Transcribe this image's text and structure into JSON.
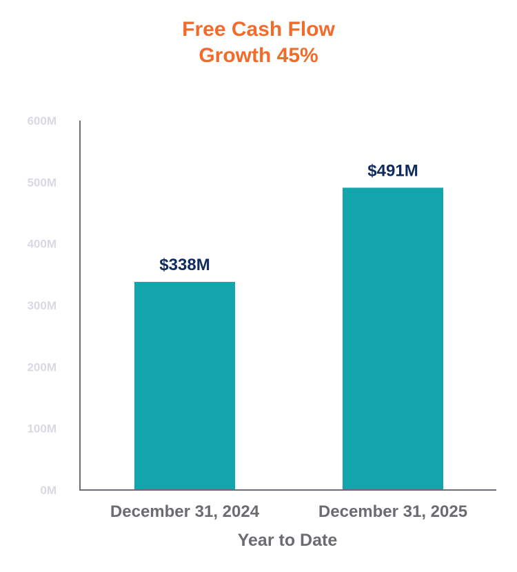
{
  "chart_data": {
    "type": "bar",
    "title": [
      "Free Cash Flow",
      "Growth 45%"
    ],
    "categories": [
      "December 31, 2024",
      "December 31, 2025"
    ],
    "values": [
      338,
      491
    ],
    "data_labels": [
      "$338M",
      "$491M"
    ],
    "xlabel": "Year to Date",
    "ylabel": "",
    "ylim": [
      0,
      600
    ],
    "yticks": [
      0,
      100,
      200,
      300,
      400,
      500,
      600
    ],
    "ytick_labels": [
      "0M",
      "100M",
      "200M",
      "300M",
      "400M",
      "500M",
      "600M"
    ],
    "grid": false,
    "colors": {
      "bar": "#12a5ab",
      "title": "#f26b2a",
      "data_label": "#0f2a5c",
      "axis": "#6b6b71"
    }
  }
}
